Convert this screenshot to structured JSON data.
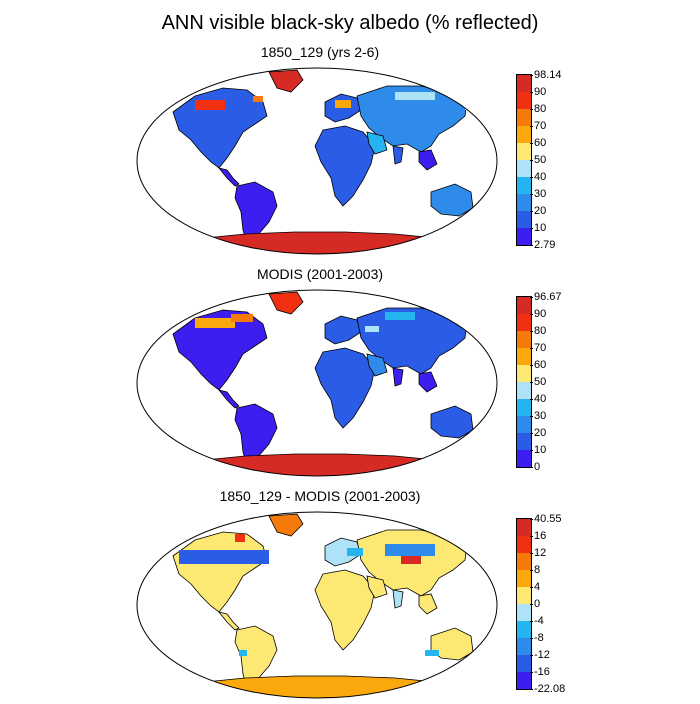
{
  "title": "ANN visible black-sky albedo (% reflected)",
  "panels": [
    {
      "subtitle": "1850_129 (yrs 2-6)",
      "variant": "model",
      "colorbar": {
        "labels": [
          "98.14",
          "90",
          "80",
          "70",
          "60",
          "50",
          "40",
          "30",
          "20",
          "10",
          "2.79"
        ],
        "colors": [
          "#d62a24",
          "#f03010",
          "#f57a0a",
          "#fba80c",
          "#fde873",
          "#aee3f7",
          "#24b4f0",
          "#2e8bea",
          "#2a5ce6",
          "#3c1ff0"
        ]
      }
    },
    {
      "subtitle": "MODIS (2001-2003)",
      "variant": "obs",
      "colorbar": {
        "labels": [
          "96.67",
          "90",
          "80",
          "70",
          "60",
          "50",
          "40",
          "30",
          "20",
          "10",
          "0"
        ],
        "colors": [
          "#d62a24",
          "#f03010",
          "#f57a0a",
          "#fba80c",
          "#fde873",
          "#aee3f7",
          "#24b4f0",
          "#2e8bea",
          "#2a5ce6",
          "#3c1ff0"
        ]
      }
    },
    {
      "subtitle": "1850_129 - MODIS (2001-2003)",
      "variant": "diff",
      "colorbar": {
        "labels": [
          "40.55",
          "16",
          "12",
          "8",
          "4",
          "0",
          "-4",
          "-8",
          "-12",
          "-16",
          "-22.08"
        ],
        "colors": [
          "#d62a24",
          "#f03010",
          "#f57a0a",
          "#fba80c",
          "#fde873",
          "#aee3f7",
          "#24b4f0",
          "#2e8bea",
          "#2a5ce6",
          "#3c1ff0"
        ]
      }
    }
  ]
}
